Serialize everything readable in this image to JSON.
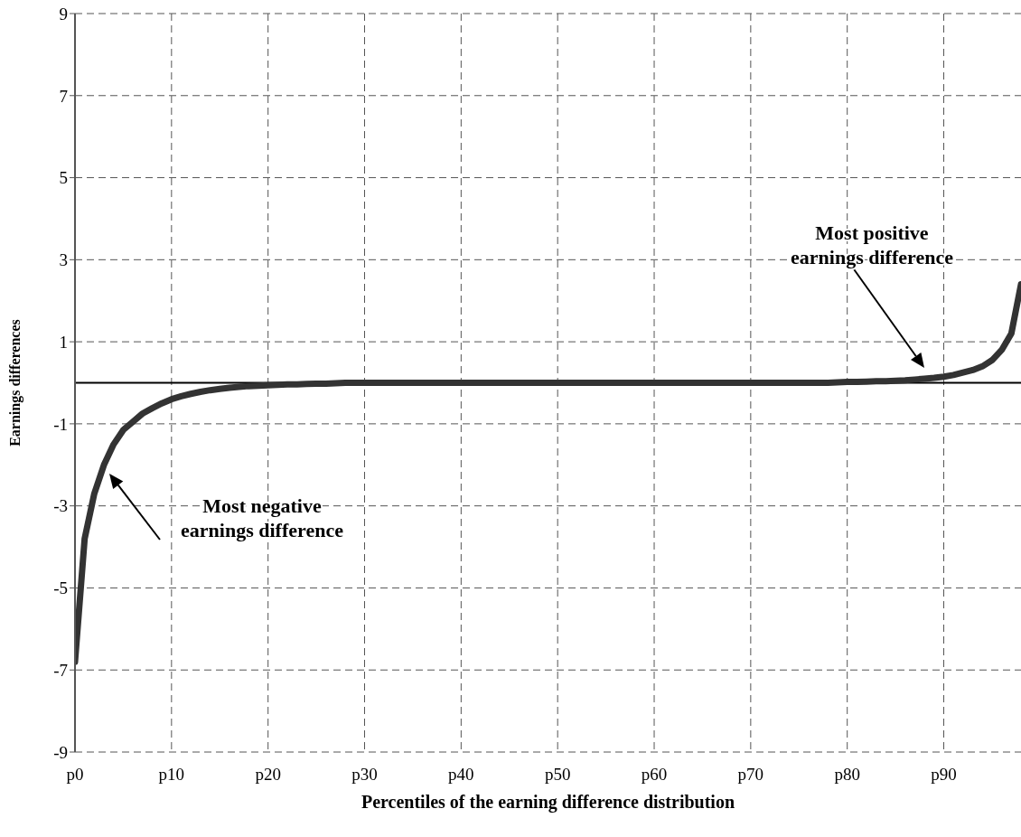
{
  "chart_data": {
    "type": "line",
    "xlabel": "Percentiles of the earning difference distribution",
    "ylabel": "Earnings differences",
    "categories": [
      "p0",
      null,
      null,
      null,
      null,
      null,
      null,
      null,
      null,
      null,
      "p10",
      null,
      null,
      null,
      null,
      null,
      null,
      null,
      null,
      null,
      "p20",
      null,
      null,
      null,
      null,
      null,
      null,
      null,
      null,
      null,
      "p30",
      null,
      null,
      null,
      null,
      null,
      null,
      null,
      null,
      null,
      "p40",
      null,
      null,
      null,
      null,
      null,
      null,
      null,
      null,
      null,
      "p50",
      null,
      null,
      null,
      null,
      null,
      null,
      null,
      null,
      null,
      "p60",
      null,
      null,
      null,
      null,
      null,
      null,
      null,
      null,
      null,
      "p70",
      null,
      null,
      null,
      null,
      null,
      null,
      null,
      null,
      null,
      "p80",
      null,
      null,
      null,
      null,
      null,
      null,
      null,
      null,
      null,
      "p90",
      null,
      null,
      null,
      null,
      null,
      null,
      null,
      null
    ],
    "series": [
      {
        "color": "#333333",
        "values": [
          -6.8,
          -3.8,
          -2.7,
          -2.0,
          -1.5,
          -1.15,
          -0.95,
          -0.75,
          -0.62,
          -0.5,
          -0.4,
          -0.33,
          -0.27,
          -0.22,
          -0.18,
          -0.15,
          -0.12,
          -0.1,
          -0.08,
          -0.07,
          -0.06,
          -0.05,
          -0.04,
          -0.04,
          -0.03,
          -0.02,
          -0.02,
          -0.01,
          0,
          0,
          0,
          0,
          0,
          0,
          0,
          0,
          0,
          0,
          0,
          0,
          0,
          0,
          0,
          0,
          0,
          0,
          0,
          0,
          0,
          0,
          0,
          0,
          0,
          0,
          0,
          0,
          0,
          0,
          0,
          0,
          0,
          0,
          0,
          0,
          0,
          0,
          0,
          0,
          0,
          0,
          0,
          0,
          0,
          0,
          0,
          0,
          0,
          0,
          0,
          0.01,
          0.02,
          0.02,
          0.03,
          0.04,
          0.04,
          0.05,
          0.06,
          0.08,
          0.1,
          0.12,
          0.15,
          0.19,
          0.25,
          0.31,
          0.4,
          0.55,
          0.8,
          1.2,
          2.4
        ]
      }
    ],
    "ylim": [
      -9,
      9
    ],
    "yticks": [
      -9,
      -7,
      -5,
      -3,
      -1,
      1,
      3,
      5,
      7,
      9
    ],
    "grid": true,
    "marker": "none",
    "line_style": "solid",
    "legend": false,
    "ref_lines": [
      {
        "axis": "y",
        "value": 0,
        "color": "#000000"
      }
    ],
    "annotations": [
      "Most negative earnings difference",
      "Most positive earnings difference"
    ]
  }
}
